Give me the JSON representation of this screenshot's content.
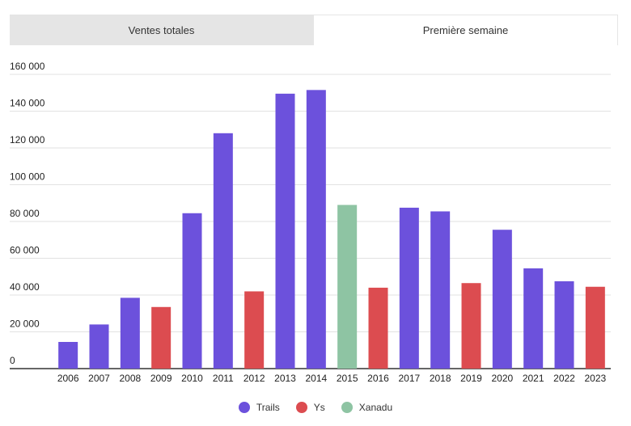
{
  "tabs": [
    {
      "label": "Ventes totales",
      "active": false
    },
    {
      "label": "Première semaine",
      "active": true
    }
  ],
  "colors": {
    "Trails": "#6c51dc",
    "Ys": "#dc4c50",
    "Xanadu": "#8ec4a3",
    "grid": "#e2e2e2",
    "axis": "#333333"
  },
  "chart_data": {
    "type": "bar",
    "categories": [
      "2006",
      "2007",
      "2008",
      "2009",
      "2010",
      "2011",
      "2012",
      "2013",
      "2014",
      "2015",
      "2016",
      "2017",
      "2018",
      "2019",
      "2020",
      "2021",
      "2022",
      "2023"
    ],
    "values": [
      14500,
      24000,
      38500,
      33500,
      84500,
      128000,
      42000,
      149500,
      151500,
      89000,
      44000,
      87500,
      85500,
      46500,
      75500,
      54500,
      47500,
      44500
    ],
    "series_of_bar": [
      "Trails",
      "Trails",
      "Trails",
      "Ys",
      "Trails",
      "Trails",
      "Ys",
      "Trails",
      "Trails",
      "Xanadu",
      "Ys",
      "Trails",
      "Trails",
      "Ys",
      "Trails",
      "Trails",
      "Trails",
      "Ys"
    ],
    "series": [
      {
        "name": "Trails"
      },
      {
        "name": "Ys"
      },
      {
        "name": "Xanadu"
      }
    ],
    "ylim": [
      0,
      160000
    ],
    "yticks": [
      0,
      20000,
      40000,
      60000,
      80000,
      100000,
      120000,
      140000,
      160000
    ],
    "ytick_labels": [
      "0",
      "20 000",
      "40 000",
      "60 000",
      "80 000",
      "100 000",
      "120 000",
      "140 000",
      "160 000"
    ],
    "grid": true,
    "legend_position": "bottom",
    "title": "",
    "xlabel": "",
    "ylabel": ""
  }
}
